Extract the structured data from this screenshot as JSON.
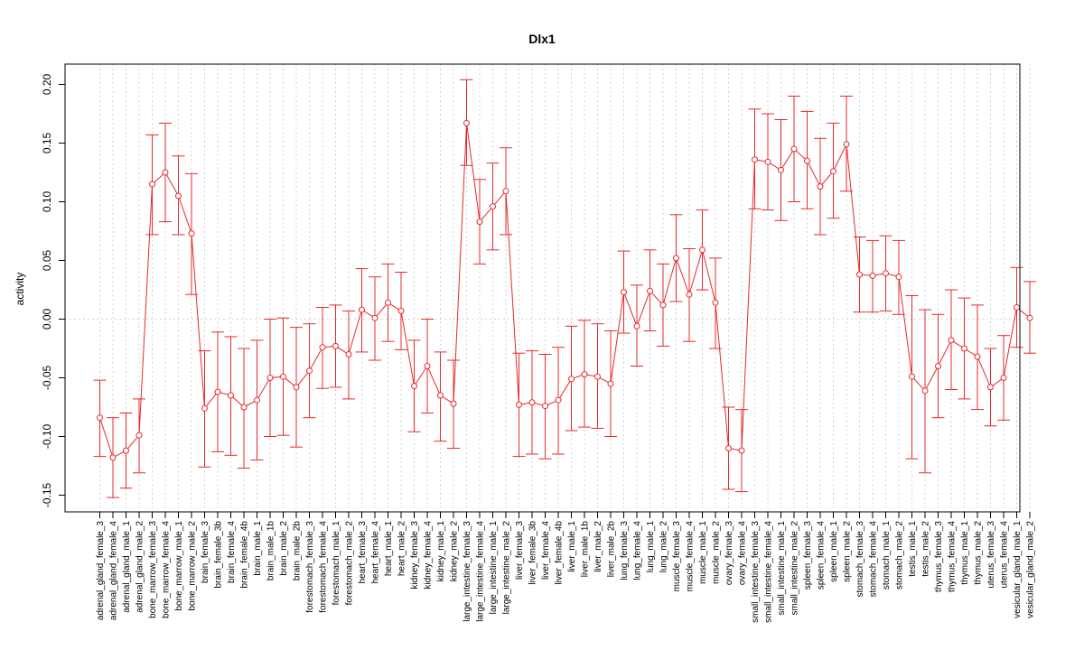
{
  "chart_data": {
    "type": "line",
    "title": "Dlx1",
    "xlabel": "",
    "ylabel": "activity",
    "ylim": [
      -0.16,
      0.215
    ],
    "yticks": [
      -0.15,
      -0.1,
      -0.05,
      0.0,
      0.05,
      0.1,
      0.15,
      0.2
    ],
    "ytick_labels": [
      "-0.15",
      "-0.10",
      "-0.05",
      "0.00",
      "0.05",
      "0.10",
      "0.15",
      "0.20"
    ],
    "grid": true,
    "color": "#e8282b",
    "categories": [
      "adrenal_gland_female_3",
      "adrenal_gland_female_4",
      "adrenal_gland_male_1",
      "adrenal_gland_male_2",
      "bone_marrow_female_3",
      "bone_marrow_female_4",
      "bone_marrow_male_1",
      "bone_marrow_male_2",
      "brain_female_3",
      "brain_female_3b",
      "brain_female_4",
      "brain_female_4b",
      "brain_male_1",
      "brain_male_1b",
      "brain_male_2",
      "brain_male_2b",
      "forestomach_female_3",
      "forestomach_female_4",
      "forestomach_male_1",
      "forestomach_male_2",
      "heart_female_3",
      "heart_female_4",
      "heart_male_1",
      "heart_male_2",
      "kidney_female_3",
      "kidney_female_4",
      "kidney_male_1",
      "kidney_male_2",
      "large_intestine_female_3",
      "large_intestine_female_4",
      "large_intestine_male_1",
      "large_intestine_male_2",
      "liver_female_3",
      "liver_female_3b",
      "liver_female_4",
      "liver_female_4b",
      "liver_male_1",
      "liver_male_1b",
      "liver_male_2",
      "liver_male_2b",
      "lung_female_3",
      "lung_female_4",
      "lung_male_1",
      "lung_male_2",
      "muscle_female_3",
      "muscle_female_4",
      "muscle_male_1",
      "muscle_male_2",
      "ovary_female_3",
      "ovary_female_4",
      "small_intestine_female_3",
      "small_intestine_female_4",
      "small_intestine_male_1",
      "small_intestine_male_2",
      "spleen_female_3",
      "spleen_female_4",
      "spleen_male_1",
      "spleen_male_2",
      "stomach_female_3",
      "stomach_female_4",
      "stomach_male_1",
      "stomach_male_2",
      "testis_male_1",
      "testis_male_2",
      "thymus_female_3",
      "thymus_female_4",
      "thymus_male_1",
      "thymus_male_2",
      "uterus_female_3",
      "uterus_female_4",
      "vesicular_gland_male_1",
      "vesicular_gland_male_2"
    ],
    "values": [
      -0.084,
      -0.118,
      -0.112,
      -0.099,
      0.115,
      0.125,
      0.105,
      0.073,
      -0.076,
      -0.062,
      -0.065,
      -0.075,
      -0.069,
      -0.05,
      -0.049,
      -0.058,
      -0.044,
      -0.024,
      -0.023,
      -0.03,
      0.008,
      0.001,
      0.014,
      0.007,
      -0.057,
      -0.04,
      -0.065,
      -0.072,
      0.167,
      0.083,
      0.096,
      0.109,
      -0.073,
      -0.071,
      -0.074,
      -0.069,
      -0.051,
      -0.047,
      -0.049,
      -0.055,
      0.023,
      -0.006,
      0.024,
      0.012,
      0.052,
      0.021,
      0.059,
      0.014,
      -0.11,
      -0.112,
      0.136,
      0.134,
      0.127,
      0.145,
      0.135,
      0.113,
      0.126,
      0.149,
      0.038,
      0.037,
      0.039,
      0.036,
      -0.049,
      -0.061,
      -0.04,
      -0.018,
      -0.025,
      -0.032,
      -0.058,
      -0.05,
      0.01,
      0.001
    ],
    "error_low": [
      -0.117,
      -0.152,
      -0.144,
      -0.131,
      0.072,
      0.083,
      0.072,
      0.021,
      -0.126,
      -0.113,
      -0.116,
      -0.127,
      -0.12,
      -0.1,
      -0.099,
      -0.109,
      -0.084,
      -0.059,
      -0.058,
      -0.068,
      -0.028,
      -0.035,
      -0.019,
      -0.026,
      -0.096,
      -0.08,
      -0.104,
      -0.11,
      0.131,
      0.047,
      0.059,
      0.072,
      -0.117,
      -0.115,
      -0.119,
      -0.115,
      -0.095,
      -0.092,
      -0.093,
      -0.1,
      -0.012,
      -0.04,
      -0.01,
      -0.023,
      0.015,
      -0.019,
      0.025,
      -0.025,
      -0.145,
      -0.147,
      0.094,
      0.093,
      0.084,
      0.1,
      0.094,
      0.072,
      0.086,
      0.109,
      0.006,
      0.006,
      0.007,
      0.004,
      -0.119,
      -0.131,
      -0.084,
      -0.06,
      -0.068,
      -0.077,
      -0.091,
      -0.086,
      -0.024,
      -0.029
    ],
    "error_high": [
      -0.052,
      -0.084,
      -0.08,
      -0.068,
      0.157,
      0.167,
      0.139,
      0.124,
      -0.027,
      -0.011,
      -0.015,
      -0.025,
      -0.018,
      0.0,
      0.001,
      -0.007,
      -0.004,
      0.01,
      0.012,
      0.007,
      0.043,
      0.036,
      0.047,
      0.04,
      -0.018,
      0.0,
      -0.028,
      -0.035,
      0.204,
      0.119,
      0.133,
      0.146,
      -0.029,
      -0.027,
      -0.03,
      -0.024,
      -0.006,
      -0.001,
      -0.004,
      -0.01,
      0.058,
      0.029,
      0.059,
      0.047,
      0.089,
      0.06,
      0.093,
      0.052,
      -0.075,
      -0.077,
      0.179,
      0.175,
      0.17,
      0.19,
      0.177,
      0.154,
      0.167,
      0.19,
      0.07,
      0.067,
      0.071,
      0.067,
      0.02,
      0.008,
      0.004,
      0.025,
      0.018,
      0.012,
      -0.025,
      -0.014,
      0.044,
      0.032
    ]
  }
}
